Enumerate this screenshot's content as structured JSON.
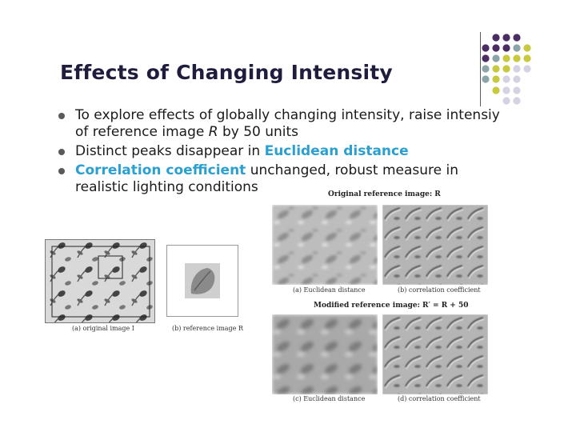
{
  "slide": {
    "title": "Effects of Changing Intensity",
    "bullets": [
      {
        "before": "To explore effects of globally changing intensity, raise intensiy of reference image ",
        "var": "R",
        "after": " by 50 units"
      },
      {
        "before": "Distinct peaks disappear in ",
        "highlight": "Euclidean distance",
        "after": ""
      },
      {
        "before": "",
        "highlight": "Correlation coefficient",
        "after": " unchanged, robust measure in realistic lighting conditions"
      }
    ]
  },
  "decor": {
    "colors": {
      "purple": "#4b2d63",
      "teal": "#8ba4a8",
      "yellow": "#c8c93e",
      "lavender": "#d4d3e3"
    }
  },
  "figure_left": {
    "caption_a": "(a) original image I",
    "caption_b": "(b) reference image R"
  },
  "figure_right": {
    "header_original": "Original reference image: R",
    "header_modified": "Modified reference image: R′ = R + 50",
    "caption_a": "(a) Euclidean distance",
    "caption_b": "(b) correlation coefficient",
    "caption_c": "(c) Euclidean distance",
    "caption_d": "(d) correlation coefficient"
  }
}
